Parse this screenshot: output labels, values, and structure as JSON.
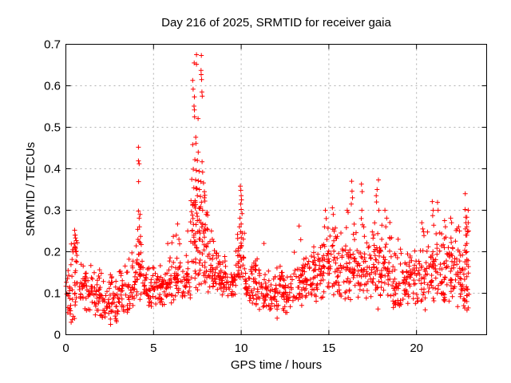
{
  "chart_data": {
    "type": "scatter",
    "title": "Day 216 of 2025, SRMTID for receiver gaia",
    "xlabel": "GPS time / hours",
    "ylabel": "SRMTID / TECUs",
    "xlim": [
      0,
      24
    ],
    "ylim": [
      0,
      0.7
    ],
    "xticks": [
      0,
      5,
      10,
      15,
      20
    ],
    "yticks": [
      0,
      0.1,
      0.2,
      0.3,
      0.4,
      0.5,
      0.6,
      0.7
    ],
    "grid": true,
    "legend": "none",
    "marker": "plus",
    "marker_size_px": 7,
    "colors": {
      "marker": "#ff0000",
      "grid": "#b0b0b0",
      "axis": "#000000",
      "background": "#ffffff",
      "text": "#000000"
    },
    "series": [
      {
        "name": "SRMTID",
        "seed": 7,
        "peak_points": [
          [
            0.5,
            0.252
          ],
          [
            0.52,
            0.24
          ],
          [
            0.55,
            0.233
          ],
          [
            0.59,
            0.227
          ],
          [
            0.48,
            0.22
          ],
          [
            0.53,
            0.21
          ],
          [
            0.57,
            0.2
          ],
          [
            0.3,
            0.03
          ],
          [
            2.55,
            0.025
          ],
          [
            4.14,
            0.452
          ],
          [
            4.14,
            0.419
          ],
          [
            4.18,
            0.412
          ],
          [
            4.15,
            0.369
          ],
          [
            4.14,
            0.298
          ],
          [
            4.23,
            0.29
          ],
          [
            4.18,
            0.281
          ],
          [
            4.2,
            0.26
          ],
          [
            4.1,
            0.254
          ],
          [
            4.26,
            0.237
          ],
          [
            6.13,
            0.237
          ],
          [
            6.3,
            0.24
          ],
          [
            6.37,
            0.267
          ],
          [
            6.45,
            0.23
          ],
          [
            6.95,
            0.25
          ],
          [
            7.45,
            0.675
          ],
          [
            7.73,
            0.673
          ],
          [
            7.32,
            0.655
          ],
          [
            7.45,
            0.652
          ],
          [
            7.71,
            0.637
          ],
          [
            7.72,
            0.627
          ],
          [
            7.23,
            0.613
          ],
          [
            7.74,
            0.615
          ],
          [
            7.26,
            0.592
          ],
          [
            7.76,
            0.585
          ],
          [
            7.33,
            0.573
          ],
          [
            7.78,
            0.575
          ],
          [
            7.31,
            0.551
          ],
          [
            7.33,
            0.542
          ],
          [
            7.34,
            0.525
          ],
          [
            7.54,
            0.521
          ],
          [
            7.41,
            0.476
          ],
          [
            7.23,
            0.458
          ],
          [
            7.42,
            0.461
          ],
          [
            7.55,
            0.44
          ],
          [
            7.36,
            0.422
          ],
          [
            7.5,
            0.42
          ],
          [
            7.77,
            0.417
          ],
          [
            7.27,
            0.399
          ],
          [
            7.44,
            0.396
          ],
          [
            7.6,
            0.394
          ],
          [
            7.8,
            0.392
          ],
          [
            7.4,
            0.373
          ],
          [
            7.55,
            0.371
          ],
          [
            7.7,
            0.369
          ],
          [
            7.85,
            0.366
          ],
          [
            7.3,
            0.354
          ],
          [
            7.48,
            0.352
          ],
          [
            7.62,
            0.35
          ],
          [
            7.5,
            0.335
          ],
          [
            7.68,
            0.333
          ],
          [
            7.9,
            0.33
          ],
          [
            7.35,
            0.31
          ],
          [
            7.6,
            0.305
          ],
          [
            7.8,
            0.3
          ],
          [
            8.0,
            0.29
          ],
          [
            7.25,
            0.28
          ],
          [
            7.5,
            0.275
          ],
          [
            7.7,
            0.27
          ],
          [
            7.95,
            0.265
          ],
          [
            8.05,
            0.255
          ],
          [
            7.2,
            0.25
          ],
          [
            7.65,
            0.245
          ],
          [
            7.3,
            0.24
          ],
          [
            7.9,
            0.235
          ],
          [
            8.1,
            0.22
          ],
          [
            8.3,
            0.25
          ],
          [
            8.35,
            0.23
          ],
          [
            9.9,
            0.26
          ],
          [
            9.93,
            0.281
          ],
          [
            9.95,
            0.358
          ],
          [
            9.97,
            0.315
          ],
          [
            9.98,
            0.348
          ],
          [
            10.0,
            0.335
          ],
          [
            10.0,
            0.302
          ],
          [
            10.02,
            0.325
          ],
          [
            10.05,
            0.292
          ],
          [
            10.0,
            0.267
          ],
          [
            11.3,
            0.22
          ],
          [
            12.05,
            0.04
          ],
          [
            13.3,
            0.262
          ],
          [
            13.4,
            0.229
          ],
          [
            14.75,
            0.26
          ],
          [
            14.8,
            0.3
          ],
          [
            14.85,
            0.28
          ],
          [
            15.2,
            0.306
          ],
          [
            15.25,
            0.29
          ],
          [
            16.05,
            0.3
          ],
          [
            16.1,
            0.295
          ],
          [
            16.28,
            0.315
          ],
          [
            16.3,
            0.37
          ],
          [
            16.32,
            0.346
          ],
          [
            16.35,
            0.33
          ],
          [
            16.86,
            0.363
          ],
          [
            16.9,
            0.345
          ],
          [
            16.88,
            0.3
          ],
          [
            16.85,
            0.28
          ],
          [
            16.92,
            0.265
          ],
          [
            17.7,
            0.335
          ],
          [
            17.72,
            0.32
          ],
          [
            17.75,
            0.35
          ],
          [
            17.83,
            0.373
          ],
          [
            17.85,
            0.3
          ],
          [
            17.8,
            0.062
          ],
          [
            18.2,
            0.3
          ],
          [
            18.3,
            0.281
          ],
          [
            18.25,
            0.26
          ],
          [
            18.95,
            0.23
          ],
          [
            20.3,
            0.27
          ],
          [
            20.35,
            0.255
          ],
          [
            20.5,
            0.06
          ],
          [
            20.9,
            0.321
          ],
          [
            20.95,
            0.3
          ],
          [
            20.92,
            0.287
          ],
          [
            20.98,
            0.264
          ],
          [
            21.2,
            0.319
          ],
          [
            21.23,
            0.3
          ],
          [
            21.6,
            0.275
          ],
          [
            21.65,
            0.26
          ],
          [
            21.95,
            0.281
          ],
          [
            22.0,
            0.27
          ],
          [
            22.4,
            0.26
          ],
          [
            22.45,
            0.25
          ],
          [
            22.78,
            0.34
          ],
          [
            22.77,
            0.302
          ],
          [
            22.8,
            0.283
          ],
          [
            22.82,
            0.27
          ],
          [
            22.79,
            0.255
          ],
          [
            22.81,
            0.24
          ],
          [
            22.87,
            0.283
          ],
          [
            22.87,
            0.26
          ],
          [
            22.87,
            0.24
          ],
          [
            22.87,
            0.22
          ],
          [
            22.87,
            0.2
          ],
          [
            22.87,
            0.17
          ],
          [
            22.87,
            0.14
          ],
          [
            22.87,
            0.11
          ],
          [
            22.87,
            0.08
          ],
          [
            22.95,
            0.3
          ],
          [
            22.95,
            0.27
          ],
          [
            22.97,
            0.25
          ]
        ],
        "baseline_bands": [
          [
            0.0,
            0.3,
            20,
            0.04,
            0.22
          ],
          [
            0.3,
            0.7,
            30,
            0.03,
            0.25
          ],
          [
            0.7,
            1.2,
            32,
            0.05,
            0.18
          ],
          [
            1.2,
            2.2,
            62,
            0.04,
            0.18
          ],
          [
            2.2,
            3.0,
            52,
            0.025,
            0.15
          ],
          [
            3.0,
            3.6,
            38,
            0.05,
            0.17
          ],
          [
            3.6,
            4.0,
            26,
            0.06,
            0.21
          ],
          [
            4.0,
            4.4,
            30,
            0.07,
            0.28
          ],
          [
            4.4,
            5.0,
            38,
            0.06,
            0.18
          ],
          [
            5.0,
            5.8,
            50,
            0.07,
            0.18
          ],
          [
            5.8,
            6.6,
            50,
            0.07,
            0.24
          ],
          [
            6.6,
            7.1,
            32,
            0.08,
            0.22
          ],
          [
            7.1,
            7.6,
            42,
            0.09,
            0.45
          ],
          [
            7.6,
            8.1,
            42,
            0.1,
            0.42
          ],
          [
            8.1,
            8.8,
            46,
            0.1,
            0.24
          ],
          [
            8.8,
            9.7,
            56,
            0.09,
            0.19
          ],
          [
            9.7,
            10.2,
            36,
            0.1,
            0.28
          ],
          [
            10.2,
            11.0,
            52,
            0.07,
            0.19
          ],
          [
            11.0,
            12.0,
            62,
            0.06,
            0.18
          ],
          [
            12.0,
            13.0,
            62,
            0.05,
            0.18
          ],
          [
            13.0,
            13.8,
            52,
            0.07,
            0.22
          ],
          [
            13.8,
            14.6,
            50,
            0.08,
            0.24
          ],
          [
            14.6,
            15.2,
            40,
            0.09,
            0.28
          ],
          [
            15.2,
            16.0,
            52,
            0.08,
            0.27
          ],
          [
            16.0,
            16.6,
            42,
            0.08,
            0.3
          ],
          [
            16.6,
            17.2,
            42,
            0.07,
            0.28
          ],
          [
            17.2,
            17.9,
            46,
            0.08,
            0.3
          ],
          [
            17.9,
            18.6,
            46,
            0.08,
            0.28
          ],
          [
            18.6,
            19.4,
            52,
            0.06,
            0.22
          ],
          [
            19.4,
            20.2,
            52,
            0.07,
            0.24
          ],
          [
            20.2,
            21.0,
            52,
            0.07,
            0.27
          ],
          [
            21.0,
            21.8,
            52,
            0.07,
            0.3
          ],
          [
            21.8,
            22.5,
            46,
            0.06,
            0.28
          ],
          [
            22.5,
            23.0,
            40,
            0.05,
            0.28
          ]
        ]
      }
    ]
  }
}
